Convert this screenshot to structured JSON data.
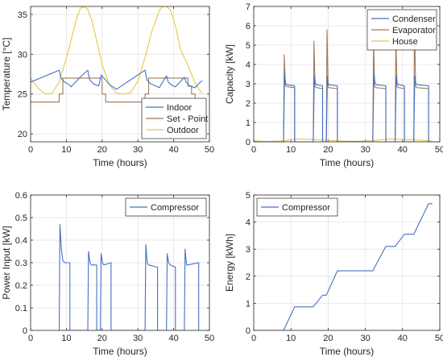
{
  "chart_data": [
    {
      "type": "line",
      "xlabel": "Time (hours)",
      "ylabel": "Temperature [°C]",
      "xlim": [
        0,
        50
      ],
      "ylim": [
        19,
        36
      ],
      "xticks": [
        "0",
        "10",
        "20",
        "30",
        "40",
        "50"
      ],
      "yticks": [
        "20",
        "25",
        "30",
        "35"
      ],
      "grid": true,
      "legend_position": "bottom-right",
      "colors": {
        "Indoor": "#4472c4",
        "Set - Point": "#a0785a",
        "Outdoor": "#e6c84a"
      },
      "series": [
        {
          "name": "Indoor",
          "x": [
            0,
            8,
            8.5,
            9.5,
            11,
            11.3,
            14,
            16,
            16.5,
            17.5,
            19,
            19.8,
            22,
            24,
            32,
            32.5,
            33.5,
            35,
            36,
            38,
            38.5,
            39.5,
            40.5,
            43,
            43.5,
            44.5,
            46,
            47,
            48
          ],
          "y": [
            26.5,
            28,
            27,
            26.5,
            26.1,
            25.9,
            27.2,
            28,
            26.8,
            26.3,
            26.0,
            27.4,
            26.2,
            25.6,
            28,
            26.8,
            26.3,
            26.0,
            25.8,
            27.3,
            26.5,
            26.1,
            25.9,
            27.1,
            26.5,
            26.0,
            25.8,
            26.3,
            26.7
          ]
        },
        {
          "name": "Set - Point",
          "x": [
            0,
            8,
            8,
            9,
            9,
            20,
            20,
            21,
            21,
            32,
            32,
            33,
            33,
            44,
            44,
            45,
            45,
            46,
            46,
            48
          ],
          "y": [
            24,
            24,
            25,
            25,
            27,
            27,
            25,
            25,
            24,
            24,
            25,
            25,
            27,
            27,
            26,
            26,
            25,
            25,
            24,
            24
          ]
        },
        {
          "name": "Outdoor",
          "x": [
            0,
            2,
            4,
            6,
            8,
            10,
            12,
            13,
            14,
            15,
            16,
            17,
            18,
            20,
            22,
            24,
            26,
            28,
            30,
            32,
            34,
            36,
            37,
            38,
            39,
            40,
            41,
            42,
            44,
            46,
            48
          ],
          "y": [
            27,
            25.8,
            25,
            25.1,
            26.5,
            29.5,
            33,
            34.7,
            35.8,
            36,
            35.6,
            34.4,
            32.6,
            28.7,
            26.2,
            25.1,
            25,
            25.2,
            26.6,
            29.6,
            33,
            35.5,
            36,
            36,
            35.6,
            34.4,
            32.6,
            30.5,
            28.6,
            26.4,
            25
          ]
        }
      ]
    },
    {
      "type": "line",
      "xlabel": "Time (hours)",
      "ylabel": "Capacity [kW]",
      "xlim": [
        0,
        50
      ],
      "ylim": [
        0,
        7
      ],
      "xticks": [
        "0",
        "10",
        "20",
        "30",
        "40",
        "50"
      ],
      "yticks": [
        "0",
        "1",
        "2",
        "3",
        "4",
        "5",
        "6",
        "7"
      ],
      "grid": true,
      "legend_position": "top-right",
      "colors": {
        "Condenser": "#4472c4",
        "Evaporator": "#a0785a",
        "House": "#e6c84a"
      },
      "series": [
        {
          "name": "Condenser",
          "x": [
            8,
            8.3,
            8.6,
            9,
            11,
            11,
            16,
            16.3,
            16.6,
            17,
            18.5,
            18.5,
            19.5,
            19.8,
            20,
            20.3,
            22.5,
            22.5,
            32,
            32.3,
            32.6,
            33,
            35.5,
            35.5,
            38,
            38.3,
            38.6,
            39,
            40.5,
            40.5,
            43,
            43.3,
            43.6,
            44,
            47,
            47
          ],
          "y": [
            0,
            3.5,
            3.0,
            2.95,
            2.9,
            0,
            0,
            3.4,
            3.0,
            2.95,
            2.9,
            0,
            0,
            3.4,
            3.0,
            2.95,
            2.9,
            0,
            0,
            3.5,
            3.05,
            2.95,
            2.9,
            0,
            0,
            3.4,
            3.0,
            2.95,
            2.9,
            0,
            0,
            3.4,
            3.0,
            2.95,
            2.9,
            0
          ]
        },
        {
          "name": "Evaporator",
          "x": [
            8,
            8.2,
            8.5,
            9,
            11,
            11,
            16,
            16.2,
            16.5,
            17,
            18.5,
            18.5,
            19.5,
            19.7,
            20,
            20.3,
            22.5,
            22.5,
            32,
            32.2,
            32.5,
            33,
            35.5,
            35.5,
            38,
            38.2,
            38.5,
            39,
            40.5,
            40.5,
            43,
            43.2,
            43.5,
            44,
            47,
            47
          ],
          "y": [
            0,
            4.5,
            2.9,
            2.85,
            2.8,
            0,
            0,
            5.2,
            2.85,
            2.8,
            2.75,
            0,
            0,
            5.8,
            2.85,
            2.8,
            2.75,
            0,
            0,
            5.3,
            2.85,
            2.8,
            2.75,
            0,
            0,
            5.5,
            2.85,
            2.8,
            2.75,
            0,
            0,
            6.3,
            2.85,
            2.8,
            2.75,
            0
          ]
        },
        {
          "name": "House",
          "x": [
            0,
            4,
            8,
            10,
            13,
            16,
            20,
            24,
            28,
            32,
            36,
            40,
            44,
            48
          ],
          "y": [
            0.05,
            0.02,
            0.05,
            0.12,
            0.15,
            0.12,
            0.08,
            0.04,
            0.03,
            0.06,
            0.14,
            0.13,
            0.09,
            0.04
          ]
        }
      ]
    },
    {
      "type": "line",
      "xlabel": "Time (hours)",
      "ylabel": "Power Input [kW]",
      "xlim": [
        0,
        50
      ],
      "ylim": [
        0,
        0.6
      ],
      "xticks": [
        "0",
        "10",
        "20",
        "30",
        "40",
        "50"
      ],
      "yticks": [
        "0",
        "0.1",
        "0.2",
        "0.3",
        "0.4",
        "0.5",
        "0.6"
      ],
      "grid": true,
      "legend_position": "top-right",
      "colors": {
        "Compressor": "#4472c4"
      },
      "series": [
        {
          "name": "Compressor",
          "x": [
            8,
            8.2,
            8.6,
            9,
            9.5,
            11,
            11,
            16,
            16.2,
            16.6,
            17,
            18.5,
            18.5,
            19.5,
            19.7,
            20.1,
            20.5,
            22.5,
            22.5,
            32,
            32.2,
            32.6,
            33,
            35.5,
            35.5,
            38,
            38.2,
            38.6,
            39,
            40.5,
            40.5,
            43,
            43.2,
            43.6,
            44,
            47,
            47
          ],
          "y": [
            0,
            0.47,
            0.36,
            0.31,
            0.3,
            0.3,
            0,
            0,
            0.35,
            0.3,
            0.29,
            0.29,
            0,
            0,
            0.34,
            0.3,
            0.29,
            0.3,
            0,
            0,
            0.38,
            0.3,
            0.29,
            0.28,
            0,
            0,
            0.34,
            0.3,
            0.29,
            0.28,
            0,
            0,
            0.36,
            0.29,
            0.29,
            0.3,
            0
          ]
        }
      ]
    },
    {
      "type": "line",
      "xlabel": "Time (hours)",
      "ylabel": "Energy [kWh]",
      "xlim": [
        0,
        50
      ],
      "ylim": [
        0,
        5
      ],
      "xticks": [
        "0",
        "10",
        "20",
        "30",
        "40",
        "50"
      ],
      "yticks": [
        "0",
        "1",
        "2",
        "3",
        "4",
        "5"
      ],
      "grid": true,
      "legend_position": "top-left",
      "colors": {
        "Compressor": "#4472c4"
      },
      "series": [
        {
          "name": "Compressor",
          "x": [
            0,
            8,
            11,
            16,
            18.5,
            19.5,
            22.5,
            32,
            35.5,
            38,
            40.5,
            43,
            47,
            48
          ],
          "y": [
            0,
            0,
            0.87,
            0.87,
            1.3,
            1.3,
            2.2,
            2.2,
            3.1,
            3.1,
            3.55,
            3.55,
            4.68,
            4.68
          ]
        }
      ]
    }
  ]
}
